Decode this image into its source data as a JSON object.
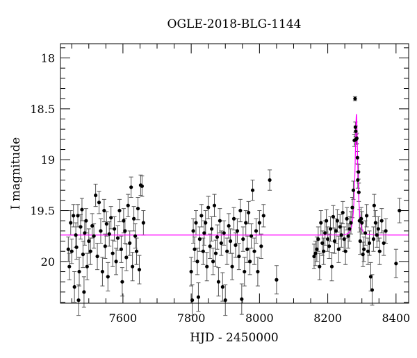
{
  "chart_data": {
    "type": "scatter",
    "title": "OGLE-2018-BLG-1144",
    "xlabel": "HJD - 2450000",
    "ylabel": "I magnitude",
    "xlim": [
      7417,
      8437
    ],
    "ylim": [
      17.86,
      20.41
    ],
    "y_inverted": true,
    "x_ticks": [
      7600,
      7800,
      8000,
      8200,
      8400
    ],
    "x_tick_labels": [
      "7600",
      "7800",
      "8000",
      "8200",
      "8400"
    ],
    "y_ticks": [
      18,
      18.5,
      19,
      19.5,
      20
    ],
    "y_tick_labels": [
      "18",
      "18.5",
      "19",
      "19.5",
      "20"
    ],
    "grid": false,
    "colors": {
      "points": "#000000",
      "errorbars": "#555555",
      "model": "#ff00ff"
    },
    "model": {
      "t0": 8284,
      "tE": 8,
      "u0": 0.35,
      "baseline": 19.74
    },
    "series": [
      {
        "columns": [
          "hjd",
          "mag",
          "err"
        ],
        "points": [
          [
            7440,
            19.88,
            0.12
          ],
          [
            7443,
            20.05,
            0.13
          ],
          [
            7447,
            19.62,
            0.12
          ],
          [
            7450,
            19.9,
            0.12
          ],
          [
            7455,
            19.55,
            0.11
          ],
          [
            7458,
            20.25,
            0.15
          ],
          [
            7462,
            19.74,
            0.12
          ],
          [
            7464,
            19.86,
            0.12
          ],
          [
            7468,
            19.55,
            0.11
          ],
          [
            7470,
            20.38,
            0.15
          ],
          [
            7472,
            20.1,
            0.14
          ],
          [
            7476,
            19.66,
            0.12
          ],
          [
            7480,
            19.49,
            0.11
          ],
          [
            7483,
            19.93,
            0.13
          ],
          [
            7486,
            20.3,
            0.15
          ],
          [
            7488,
            19.72,
            0.12
          ],
          [
            7492,
            19.6,
            0.12
          ],
          [
            7495,
            20.05,
            0.13
          ],
          [
            7500,
            19.8,
            0.12
          ],
          [
            7505,
            19.9,
            0.13
          ],
          [
            7510,
            19.65,
            0.12
          ],
          [
            7515,
            19.75,
            0.12
          ],
          [
            7520,
            19.35,
            0.11
          ],
          [
            7525,
            19.95,
            0.13
          ],
          [
            7530,
            19.42,
            0.11
          ],
          [
            7535,
            19.7,
            0.12
          ],
          [
            7540,
            20.1,
            0.14
          ],
          [
            7545,
            19.5,
            0.11
          ],
          [
            7548,
            19.85,
            0.12
          ],
          [
            7552,
            19.63,
            0.12
          ],
          [
            7556,
            20.15,
            0.14
          ],
          [
            7560,
            19.73,
            0.12
          ],
          [
            7565,
            19.57,
            0.11
          ],
          [
            7570,
            19.92,
            0.13
          ],
          [
            7575,
            19.68,
            0.12
          ],
          [
            7580,
            20.0,
            0.13
          ],
          [
            7585,
            19.77,
            0.12
          ],
          [
            7590,
            19.5,
            0.11
          ],
          [
            7595,
            19.88,
            0.13
          ],
          [
            7598,
            20.2,
            0.14
          ],
          [
            7602,
            19.6,
            0.12
          ],
          [
            7606,
            19.7,
            0.12
          ],
          [
            7610,
            19.96,
            0.13
          ],
          [
            7615,
            19.45,
            0.11
          ],
          [
            7620,
            19.82,
            0.12
          ],
          [
            7624,
            19.27,
            0.1
          ],
          [
            7628,
            20.05,
            0.14
          ],
          [
            7632,
            19.58,
            0.12
          ],
          [
            7636,
            19.75,
            0.12
          ],
          [
            7640,
            19.9,
            0.13
          ],
          [
            7644,
            19.48,
            0.11
          ],
          [
            7648,
            20.08,
            0.14
          ],
          [
            7652,
            19.25,
            0.1
          ],
          [
            7656,
            19.26,
            0.1
          ],
          [
            7660,
            19.62,
            0.12
          ],
          [
            7800,
            20.1,
            0.14
          ],
          [
            7803,
            20.38,
            0.15
          ],
          [
            7806,
            19.7,
            0.12
          ],
          [
            7810,
            19.88,
            0.12
          ],
          [
            7814,
            19.62,
            0.12
          ],
          [
            7818,
            20.0,
            0.13
          ],
          [
            7821,
            20.35,
            0.14
          ],
          [
            7825,
            19.78,
            0.12
          ],
          [
            7830,
            19.55,
            0.11
          ],
          [
            7835,
            19.9,
            0.13
          ],
          [
            7838,
            19.72,
            0.12
          ],
          [
            7842,
            19.62,
            0.12
          ],
          [
            7846,
            20.05,
            0.14
          ],
          [
            7850,
            19.47,
            0.11
          ],
          [
            7855,
            19.85,
            0.12
          ],
          [
            7860,
            19.68,
            0.12
          ],
          [
            7864,
            20.0,
            0.13
          ],
          [
            7868,
            19.45,
            0.11
          ],
          [
            7872,
            19.92,
            0.13
          ],
          [
            7876,
            19.76,
            0.12
          ],
          [
            7880,
            20.2,
            0.14
          ],
          [
            7884,
            19.6,
            0.12
          ],
          [
            7888,
            19.82,
            0.12
          ],
          [
            7892,
            20.25,
            0.14
          ],
          [
            7896,
            19.72,
            0.12
          ],
          [
            7900,
            20.38,
            0.15
          ],
          [
            7905,
            19.9,
            0.13
          ],
          [
            7910,
            19.65,
            0.12
          ],
          [
            7915,
            19.8,
            0.12
          ],
          [
            7920,
            20.05,
            0.13
          ],
          [
            7925,
            19.58,
            0.11
          ],
          [
            7930,
            19.84,
            0.12
          ],
          [
            7935,
            19.7,
            0.12
          ],
          [
            7940,
            19.95,
            0.13
          ],
          [
            7944,
            19.5,
            0.11
          ],
          [
            7948,
            20.37,
            0.15
          ],
          [
            7952,
            19.78,
            0.12
          ],
          [
            7956,
            20.1,
            0.14
          ],
          [
            7960,
            19.62,
            0.12
          ],
          [
            7964,
            19.88,
            0.13
          ],
          [
            7968,
            19.52,
            0.11
          ],
          [
            7972,
            20.0,
            0.13
          ],
          [
            7976,
            19.75,
            0.12
          ],
          [
            7980,
            19.3,
            0.1
          ],
          [
            7985,
            19.9,
            0.13
          ],
          [
            7990,
            19.7,
            0.12
          ],
          [
            7995,
            20.1,
            0.14
          ],
          [
            8000,
            19.62,
            0.12
          ],
          [
            8005,
            19.85,
            0.12
          ],
          [
            8012,
            19.55,
            0.11
          ],
          [
            8030,
            19.2,
            0.1
          ],
          [
            8050,
            20.18,
            0.14
          ],
          [
            8160,
            19.95,
            0.12
          ],
          [
            8164,
            19.92,
            0.12
          ],
          [
            8168,
            19.88,
            0.12
          ],
          [
            8172,
            19.78,
            0.12
          ],
          [
            8176,
            20.05,
            0.13
          ],
          [
            8180,
            19.62,
            0.12
          ],
          [
            8184,
            19.82,
            0.12
          ],
          [
            8188,
            19.9,
            0.13
          ],
          [
            8192,
            19.72,
            0.12
          ],
          [
            8196,
            19.6,
            0.11
          ],
          [
            8200,
            19.78,
            0.12
          ],
          [
            8204,
            19.85,
            0.12
          ],
          [
            8208,
            19.68,
            0.12
          ],
          [
            8212,
            20.05,
            0.14
          ],
          [
            8216,
            19.56,
            0.11
          ],
          [
            8220,
            19.8,
            0.12
          ],
          [
            8224,
            19.7,
            0.12
          ],
          [
            8228,
            19.6,
            0.11
          ],
          [
            8232,
            19.88,
            0.13
          ],
          [
            8236,
            19.66,
            0.12
          ],
          [
            8240,
            19.74,
            0.12
          ],
          [
            8244,
            19.52,
            0.11
          ],
          [
            8248,
            19.78,
            0.12
          ],
          [
            8252,
            19.9,
            0.13
          ],
          [
            8256,
            19.58,
            0.11
          ],
          [
            8260,
            19.75,
            0.12
          ],
          [
            8264,
            19.68,
            0.12
          ],
          [
            8268,
            19.62,
            0.11
          ],
          [
            8272,
            19.47,
            0.1
          ],
          [
            8275,
            19.3,
            0.09
          ],
          [
            8278,
            18.81,
            0.06
          ],
          [
            8280,
            18.4,
            0.02
          ],
          [
            8281,
            18.68,
            0.05
          ],
          [
            8282,
            18.72,
            0.05
          ],
          [
            8283,
            18.8,
            0.05
          ],
          [
            8285,
            18.79,
            0.05
          ],
          [
            8287,
            18.98,
            0.06
          ],
          [
            8288,
            19.2,
            0.08
          ],
          [
            8290,
            19.12,
            0.07
          ],
          [
            8291,
            19.32,
            0.09
          ],
          [
            8293,
            19.6,
            0.11
          ],
          [
            8295,
            19.8,
            0.13
          ],
          [
            8298,
            19.58,
            0.11
          ],
          [
            8300,
            19.62,
            0.11
          ],
          [
            8303,
            19.93,
            0.12
          ],
          [
            8306,
            19.88,
            0.12
          ],
          [
            8310,
            19.72,
            0.12
          ],
          [
            8314,
            19.55,
            0.11
          ],
          [
            8318,
            19.9,
            0.13
          ],
          [
            8322,
            19.82,
            0.12
          ],
          [
            8326,
            20.15,
            0.14
          ],
          [
            8330,
            20.28,
            0.15
          ],
          [
            8334,
            19.78,
            0.12
          ],
          [
            8336,
            19.45,
            0.11
          ],
          [
            8340,
            19.62,
            0.12
          ],
          [
            8344,
            19.74,
            0.12
          ],
          [
            8348,
            19.68,
            0.12
          ],
          [
            8352,
            19.9,
            0.13
          ],
          [
            8358,
            19.6,
            0.12
          ],
          [
            8364,
            19.82,
            0.12
          ],
          [
            8370,
            19.7,
            0.12
          ],
          [
            8400,
            20.02,
            0.14
          ],
          [
            8410,
            19.5,
            0.12
          ]
        ]
      }
    ]
  }
}
